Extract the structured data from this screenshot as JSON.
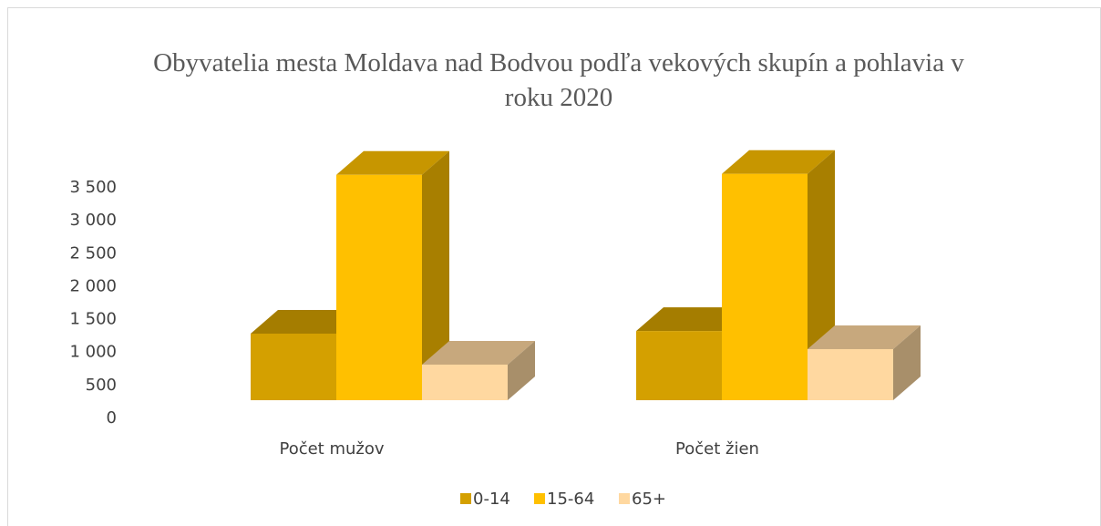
{
  "chart_data": {
    "type": "bar3d",
    "title": "Obyvatelia mesta Moldava nad Bodvou podľa vekových skupín a pohlavia v roku 2020",
    "categories": [
      "Počet mužov",
      "Počet žien"
    ],
    "series": [
      {
        "name": "0-14",
        "color": "#d4a000",
        "values": [
          1010,
          1050
        ]
      },
      {
        "name": "15-64",
        "color": "#ffc000",
        "values": [
          3420,
          3435
        ]
      },
      {
        "name": "65+",
        "color": "#ffd8a0",
        "values": [
          540,
          775
        ]
      }
    ],
    "ylim": [
      0,
      3500
    ],
    "yticks": [
      0,
      500,
      {
        "value": 1000,
        "label": "1 000"
      },
      {
        "value": 1500,
        "label": "1 500"
      },
      {
        "value": 2000,
        "label": "2 000"
      },
      {
        "value": 2500,
        "label": "2 500"
      },
      {
        "value": 3000,
        "label": "3 000"
      },
      {
        "value": 3500,
        "label": "3 500"
      }
    ],
    "legend": "bottom"
  }
}
